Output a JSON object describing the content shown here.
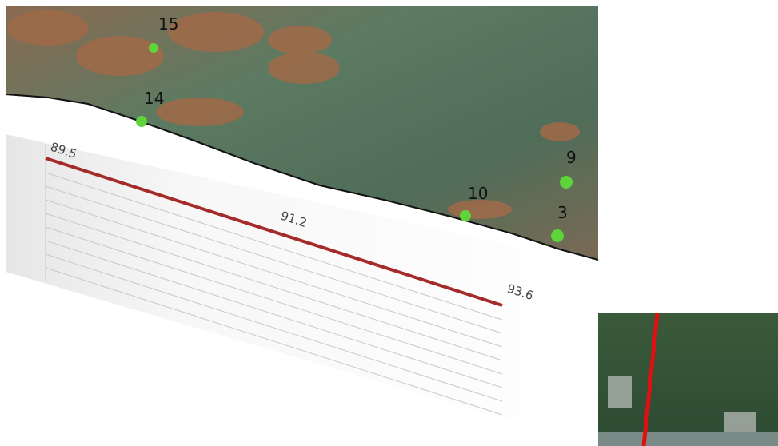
{
  "markers": [
    {
      "label": "15"
    },
    {
      "label": "14"
    },
    {
      "label": "10"
    },
    {
      "label": "9"
    },
    {
      "label": "3"
    }
  ],
  "profile": {
    "labels": [
      "89.5",
      "91.2",
      "93.6"
    ]
  }
}
